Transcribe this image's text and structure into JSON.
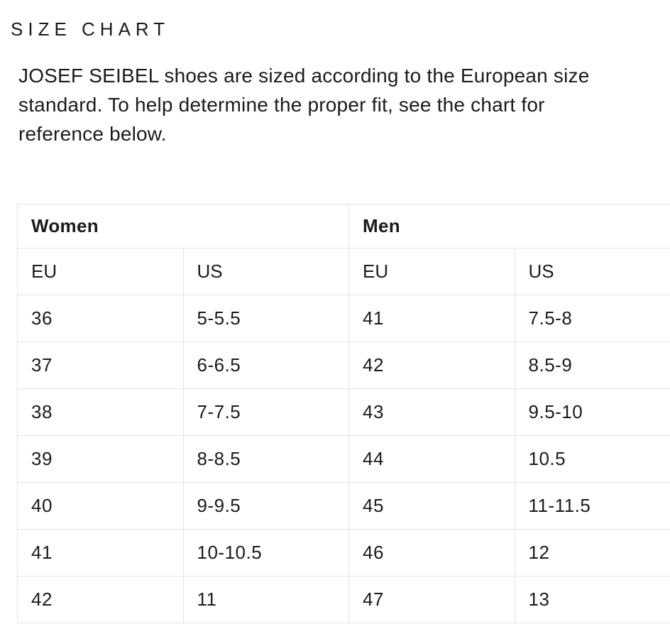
{
  "page": {
    "title": "SIZE CHART",
    "intro": "JOSEF SEIBEL shoes are sized according to the European size\nstandard. To help determine the proper fit, see the chart for\nreference below."
  },
  "table": {
    "groups": [
      {
        "label": "Women"
      },
      {
        "label": "Men"
      }
    ],
    "columns": [
      "EU",
      "US",
      "EU",
      "US"
    ],
    "rows": [
      [
        "36",
        "5-5.5",
        "41",
        "7.5-8"
      ],
      [
        "37",
        "6-6.5",
        "42",
        "8.5-9"
      ],
      [
        "38",
        "7-7.5",
        "43",
        "9.5-10"
      ],
      [
        "39",
        "8-8.5",
        "44",
        "10.5"
      ],
      [
        "40",
        "9-9.5",
        "45",
        "11-11.5"
      ],
      [
        "41",
        "10-10.5",
        "46",
        "12"
      ],
      [
        "42",
        "11",
        "47",
        "13"
      ]
    ]
  },
  "colors": {
    "background": "#ffffff",
    "text": "#1b1b1b",
    "table_border": "#e6e3d9"
  }
}
